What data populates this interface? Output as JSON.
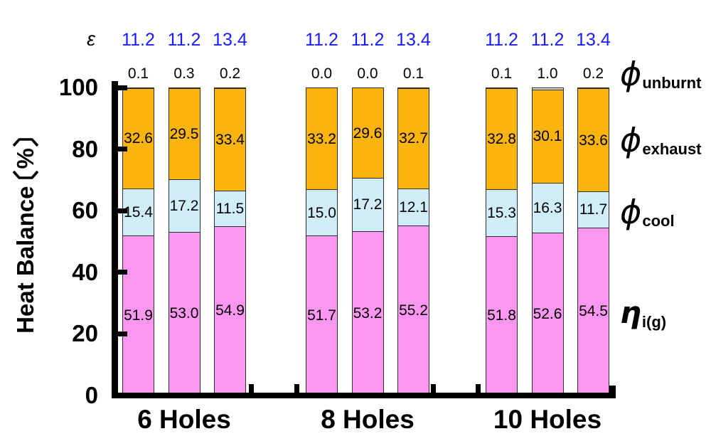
{
  "y_axis": {
    "label": "Heat Balance",
    "unit": "%",
    "ticks": [
      0,
      20,
      40,
      60,
      80,
      100
    ]
  },
  "epsilon": {
    "symbol": "ε"
  },
  "legend": {
    "items": [
      {
        "symbol": "ϕ",
        "subscript": "unburnt"
      },
      {
        "symbol": "ϕ",
        "subscript": "exhaust"
      },
      {
        "symbol": "ϕ",
        "subscript": "cool"
      },
      {
        "symbol": "η",
        "subscript": "i(g)"
      }
    ]
  },
  "colors": {
    "eta": "#FB96F1",
    "cool": "#CFEEF9",
    "exhaust": "#FBB40D",
    "unburnt": "#D9D9D9",
    "epsilon_text": "#1A1AFF",
    "axis": "#000000",
    "segment_border": "#2E2E2E"
  },
  "chart_data": {
    "type": "bar",
    "stacked": true,
    "ylim": [
      0,
      100
    ],
    "ylabel": "Heat Balance 〔%〕",
    "stack_order_bottom_to_top": [
      "eta_i(g)",
      "phi_cool",
      "phi_exhaust",
      "phi_unburnt"
    ],
    "groups": [
      {
        "label": "6 Holes",
        "epsilon": [
          "11.2",
          "11.2",
          "13.4"
        ],
        "bars": [
          {
            "eta": 51.9,
            "cool": 15.4,
            "exhaust": 32.6,
            "unburnt": 0.1
          },
          {
            "eta": 53.0,
            "cool": 17.2,
            "exhaust": 29.5,
            "unburnt": 0.3
          },
          {
            "eta": 54.9,
            "cool": 11.5,
            "exhaust": 33.4,
            "unburnt": 0.2
          }
        ]
      },
      {
        "label": "8 Holes",
        "epsilon": [
          "11.2",
          "11.2",
          "13.4"
        ],
        "bars": [
          {
            "eta": 51.7,
            "cool": 15.0,
            "exhaust": 33.2,
            "unburnt": 0.0
          },
          {
            "eta": 53.2,
            "cool": 17.2,
            "exhaust": 29.6,
            "unburnt": 0.0
          },
          {
            "eta": 55.2,
            "cool": 12.1,
            "exhaust": 32.7,
            "unburnt": 0.1
          }
        ]
      },
      {
        "label": "10 Holes",
        "epsilon": [
          "11.2",
          "11.2",
          "13.4"
        ],
        "bars": [
          {
            "eta": 51.8,
            "cool": 15.3,
            "exhaust": 32.8,
            "unburnt": 0.1
          },
          {
            "eta": 52.6,
            "cool": 16.3,
            "exhaust": 30.1,
            "unburnt": 1.0
          },
          {
            "eta": 54.5,
            "cool": 11.7,
            "exhaust": 33.6,
            "unburnt": 0.2
          }
        ]
      }
    ]
  }
}
